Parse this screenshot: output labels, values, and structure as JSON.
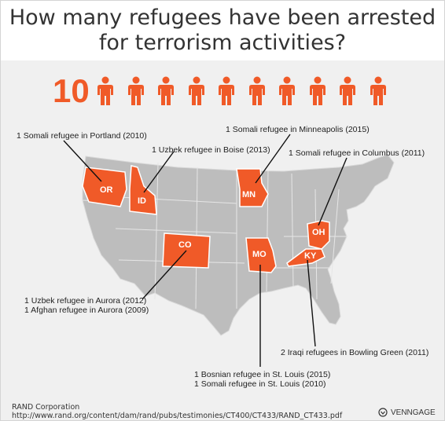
{
  "title_line1": "How many refugees have been arrested",
  "title_line2": "for terrorism activities?",
  "count": "10",
  "person_icon": "person-icon",
  "accent_color": "#f05a28",
  "states": [
    {
      "abbr": "OR"
    },
    {
      "abbr": "ID"
    },
    {
      "abbr": "MN"
    },
    {
      "abbr": "CO"
    },
    {
      "abbr": "MO"
    },
    {
      "abbr": "OH"
    },
    {
      "abbr": "KY"
    }
  ],
  "annotations": {
    "portland": "1 Somali refugee in Portland (2010)",
    "boise": "1 Uzbek refugee in Boise (2013)",
    "minneapolis": "1 Somali refugee in Minneapolis (2015)",
    "columbus": "1 Somali refugee in Columbus (2011)",
    "aurora_1": "1 Uzbek refugee in Aurora (2012)",
    "aurora_2": "1 Afghan refugee in Aurora (2009)",
    "bowling_green": "2 Iraqi refugees in Bowling Green (2011)",
    "st_louis_1": "1 Bosnian refugee in St. Louis (2015)",
    "st_louis_2": "1 Somali refugee in St. Louis (2010)"
  },
  "source_line1": "RAND Corporation",
  "source_line2": "http://www.rand.org/content/dam/rand/pubs/testimonies/CT400/CT433/RAND_CT433.pdf",
  "brand": "VENNGAGE"
}
